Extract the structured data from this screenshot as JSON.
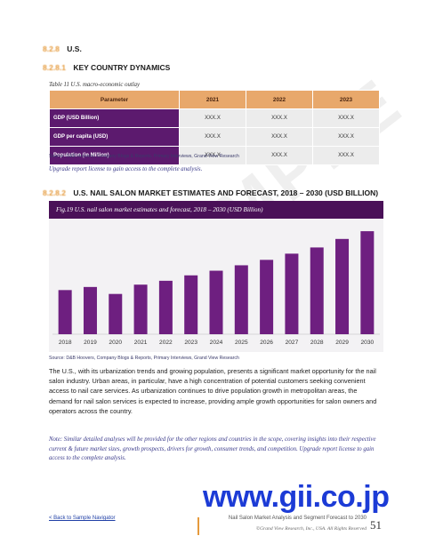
{
  "watermark": "SAMPLE",
  "section": {
    "number": "8.2.8",
    "title": "U.S."
  },
  "subsection1": {
    "number": "8.2.8.1",
    "title": "KEY COUNTRY DYNAMICS"
  },
  "table_caption": "Table 11 U.S. macro-economic outlay",
  "table": {
    "headers": [
      "Parameter",
      "2021",
      "2022",
      "2023"
    ],
    "rows": [
      {
        "label": "GDP (USD Billion)",
        "values": [
          "XXX.X",
          "XXX.X",
          "XXX.X"
        ]
      },
      {
        "label": "GDP per capita (USD)",
        "values": [
          "XXX.X",
          "XXX.X",
          "XXX.X"
        ]
      },
      {
        "label": "Population (in Million)",
        "values": [
          "XXX.X",
          "XXX.X",
          "XXX.X"
        ]
      }
    ]
  },
  "source1": "Source: D&B Hoovers, Company Blogs & Reports, Primary Interviews, Grand View Research",
  "upgrade1": "Upgrade report license to gain access to the complete analysis.",
  "subsection2": {
    "number": "8.2.8.2",
    "title": "U.S. NAIL SALON MARKET ESTIMATES AND FORECAST, 2018 – 2030 (USD BILLION)"
  },
  "chart_data": {
    "type": "bar",
    "title": "Fig.19 U.S. nail salon market estimates and forecast, 2018 – 2030 (USD Billion)",
    "categories": [
      "2018",
      "2019",
      "2020",
      "2021",
      "2022",
      "2023",
      "2024",
      "2025",
      "2026",
      "2027",
      "2028",
      "2029",
      "2030"
    ],
    "values": [
      57,
      61,
      52,
      64,
      69,
      76,
      82,
      89,
      96,
      104,
      112,
      123,
      133
    ],
    "ylim": [
      0,
      140
    ],
    "bar_color": "#6e1f80",
    "grid": false,
    "legend": "none"
  },
  "source2": "Source: D&B Hoovers, Company Blogs & Reports, Primary Interviews, Grand View Research",
  "body_text": "The U.S., with its urbanization trends and growing population, presents a significant market opportunity for the nail salon industry. Urban areas, in particular, have a high concentration of potential customers seeking convenient access to nail care services. As urbanization continues to drive population growth in metropolitan areas, the demand for nail salon services is expected to increase, providing ample growth opportunities for salon owners and operators across the country.",
  "note": "Note: Similar detailed analyses will be provided for the other regions and countries in the scope, covering insights into their respective current & future market sizes, growth prospects, drivers for growth, consumer trends, and competition. Upgrade report license to gain access to the complete analysis.",
  "gii_logo": "www.gii.co.jp",
  "footer": {
    "back_link": "< Back to Sample Navigator",
    "report_title": "Nail Salon Market Analysis and Segment Forecast to 2030",
    "copyright": "©Grand View Research, Inc., USA. All Rights Reserved",
    "page_number": "51"
  },
  "colors": {
    "accent": "#e59a3c",
    "header_orange": "#e8a86b",
    "purple": "#5c1a6e",
    "link_blue": "#1f3fa6",
    "gii_blue": "#1c3bd6"
  }
}
